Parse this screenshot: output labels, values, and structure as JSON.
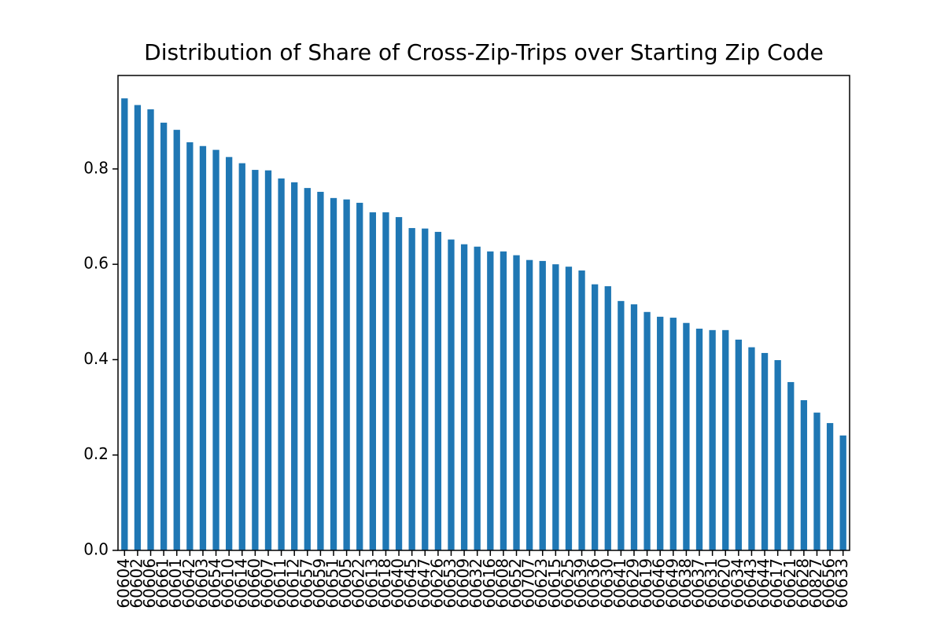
{
  "chart_data": {
    "type": "bar",
    "title": "Distribution of Share of Cross-Zip-Trips over Starting Zip Code",
    "color": "#1f77b4",
    "categories": [
      "60604",
      "60602",
      "60606",
      "60661",
      "60601",
      "60642",
      "60603",
      "60654",
      "60610",
      "60614",
      "60660",
      "60607",
      "60611",
      "60612",
      "60657",
      "60659",
      "60651",
      "60605",
      "60622",
      "60613",
      "60618",
      "60640",
      "60645",
      "60647",
      "60626",
      "60653",
      "60609",
      "60632",
      "60616",
      "60608",
      "60652",
      "60707",
      "60623",
      "60615",
      "60625",
      "60639",
      "60636",
      "60630",
      "60641",
      "60629",
      "60619",
      "60646",
      "60649",
      "60638",
      "60637",
      "60631",
      "60620",
      "60634",
      "60643",
      "60644",
      "60617",
      "60621",
      "60628",
      "60827",
      "60656",
      "60633"
    ],
    "values": [
      0.948,
      0.934,
      0.925,
      0.897,
      0.882,
      0.856,
      0.848,
      0.84,
      0.825,
      0.812,
      0.798,
      0.797,
      0.78,
      0.772,
      0.76,
      0.752,
      0.739,
      0.736,
      0.729,
      0.709,
      0.709,
      0.699,
      0.676,
      0.675,
      0.668,
      0.652,
      0.642,
      0.637,
      0.627,
      0.627,
      0.619,
      0.609,
      0.607,
      0.6,
      0.595,
      0.587,
      0.558,
      0.554,
      0.523,
      0.516,
      0.5,
      0.49,
      0.488,
      0.477,
      0.465,
      0.462,
      0.462,
      0.442,
      0.426,
      0.414,
      0.399,
      0.353,
      0.315,
      0.289,
      0.267,
      0.241
    ],
    "ylim": [
      0,
      0.996
    ],
    "yticks": [
      {
        "value": 0,
        "label": "0.0"
      },
      {
        "value": 0.2,
        "label": "0.2"
      },
      {
        "value": 0.4,
        "label": "0.4"
      },
      {
        "value": 0.6,
        "label": "0.6"
      },
      {
        "value": 0.8,
        "label": "0.8"
      }
    ]
  }
}
